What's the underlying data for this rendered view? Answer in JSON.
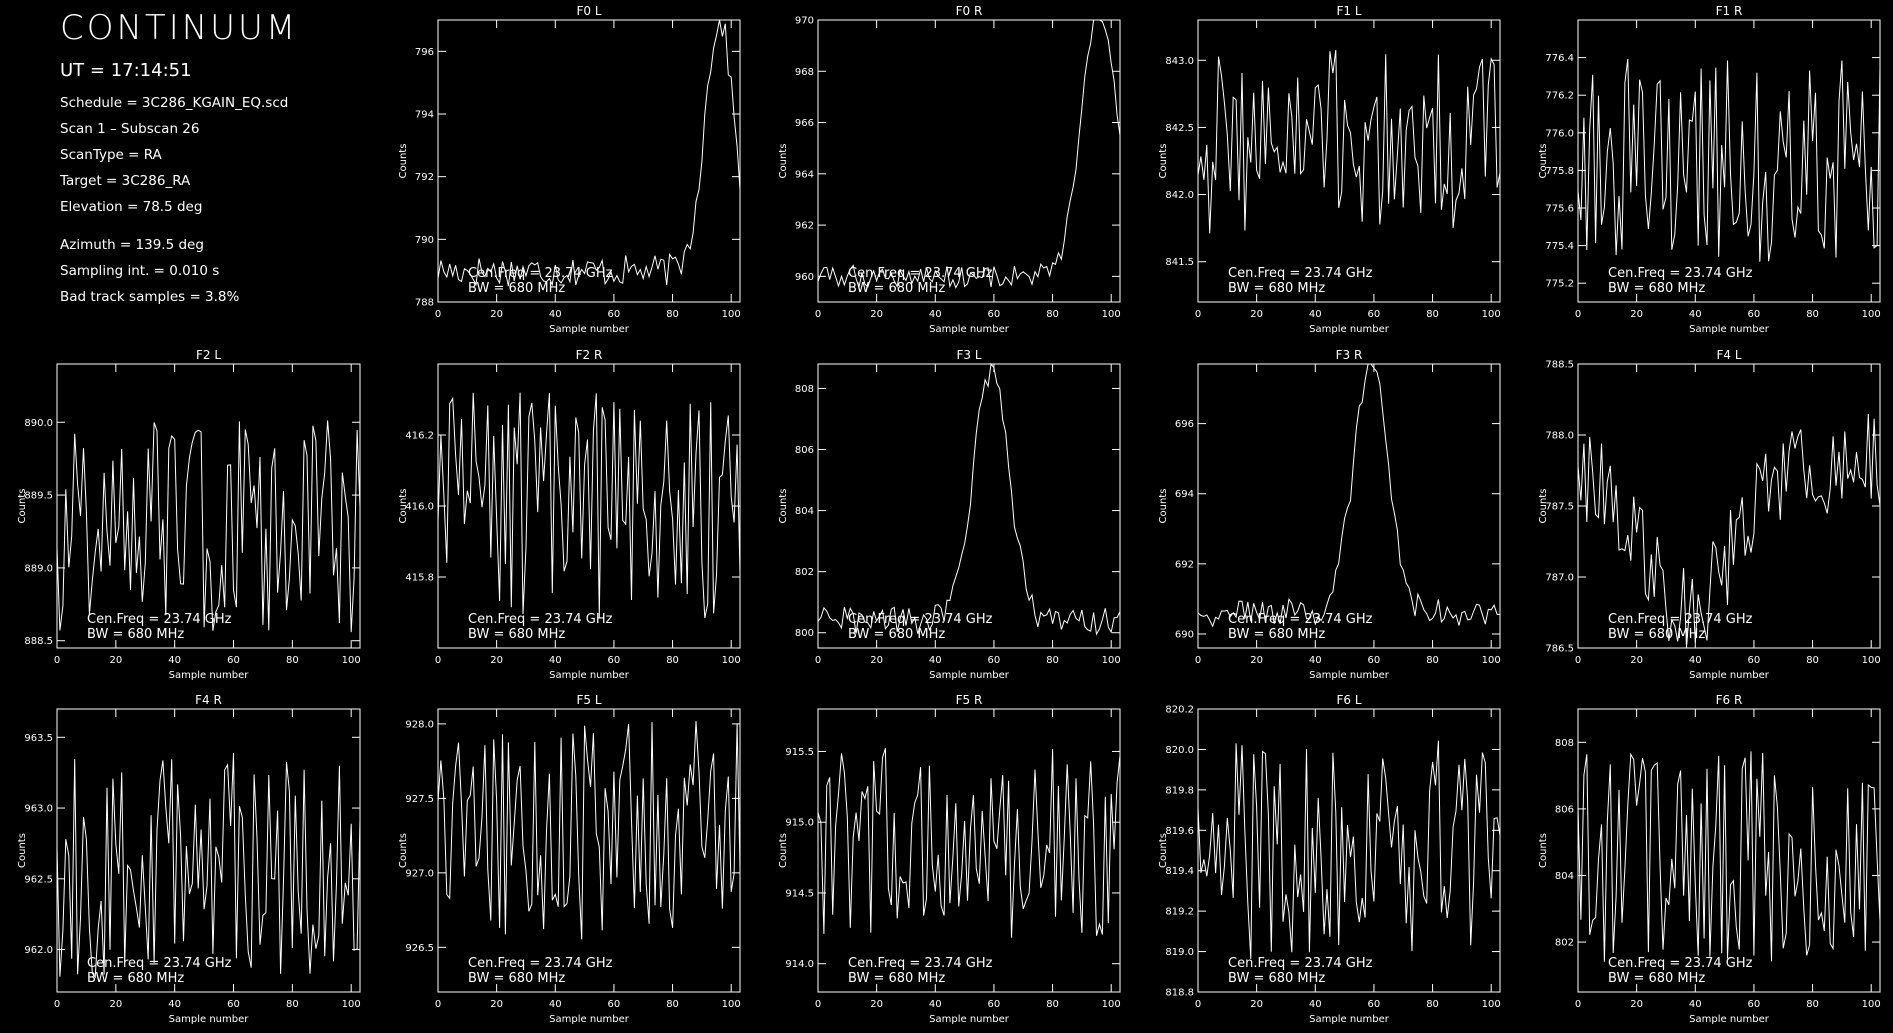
{
  "header": {
    "title": "CONTINUUM",
    "ut": "UT = 17:14:51",
    "lines_a": [
      "Schedule = 3C286_KGAIN_EQ.scd",
      "Scan 1 – Subscan 26",
      "ScanType = RA",
      "Target = 3C286_RA",
      "Elevation = 78.5 deg"
    ],
    "lines_b": [
      "Azimuth = 139.5 deg",
      "Sampling int. =  0.010 s",
      "Bad track samples =   3.8%"
    ]
  },
  "colors": {
    "background": "#000000",
    "foreground": "#ffffff"
  },
  "chart_data": [
    {
      "type": "line",
      "title": "F0 L",
      "xlabel": "Sample number",
      "ylabel": "Counts",
      "xlim": [
        0,
        103
      ],
      "ylim": [
        788,
        797
      ],
      "xticks": [
        0,
        20,
        40,
        60,
        80,
        100
      ],
      "yticks": [
        "788",
        "790",
        "792",
        "794",
        "796"
      ],
      "annotation": [
        "Cen.Freq = 23.74 GHz",
        "BW = 680 MHz"
      ],
      "signal": {
        "kind": "edge_peak",
        "base": 789,
        "amp": 8,
        "center": 96,
        "width": 5,
        "noise": 0.5
      }
    },
    {
      "type": "line",
      "title": "F0 R",
      "xlabel": "Sample number",
      "ylabel": "Counts",
      "xlim": [
        0,
        103
      ],
      "ylim": [
        959,
        970
      ],
      "xticks": [
        0,
        20,
        40,
        60,
        80,
        100
      ],
      "yticks": [
        "960",
        "962",
        "964",
        "966",
        "968",
        "970"
      ],
      "annotation": [
        "Cen.Freq = 23.74 GHz",
        "BW = 680 MHz"
      ],
      "signal": {
        "kind": "edge_peak",
        "base": 960,
        "amp": 10.5,
        "center": 96,
        "width": 6,
        "noise": 0.45
      }
    },
    {
      "type": "line",
      "title": "F1 L",
      "xlabel": "Sample number",
      "ylabel": "Counts",
      "xlim": [
        0,
        103
      ],
      "ylim": [
        841.2,
        843.3
      ],
      "xticks": [
        0,
        20,
        40,
        60,
        80,
        100
      ],
      "yticks": [
        "841.5",
        "842.0",
        "842.5",
        "843.0"
      ],
      "annotation": [
        "Cen.Freq = 23.74 GHz",
        "BW = 680 MHz"
      ],
      "signal": {
        "kind": "noise",
        "base": 842.4,
        "noise": 0.7
      }
    },
    {
      "type": "line",
      "title": "F1 R",
      "xlabel": "Sample number",
      "ylabel": "Counts",
      "xlim": [
        0,
        103
      ],
      "ylim": [
        775.1,
        776.6
      ],
      "xticks": [
        0,
        20,
        40,
        60,
        80,
        100
      ],
      "yticks": [
        "775.2",
        "775.4",
        "775.6",
        "775.8",
        "776.0",
        "776.2",
        "776.4"
      ],
      "annotation": [
        "Cen.Freq = 23.74 GHz",
        "BW = 680 MHz"
      ],
      "signal": {
        "kind": "noise",
        "base": 775.85,
        "noise": 0.55
      }
    },
    {
      "type": "line",
      "title": "F2 L",
      "xlabel": "Sample number",
      "ylabel": "Counts",
      "xlim": [
        0,
        103
      ],
      "ylim": [
        888.45,
        890.4
      ],
      "xticks": [
        0,
        20,
        40,
        60,
        80,
        100
      ],
      "yticks": [
        "888.5",
        "889.0",
        "889.5",
        "890.0"
      ],
      "annotation": [
        "Cen.Freq = 23.74 GHz",
        "BW = 680 MHz"
      ],
      "signal": {
        "kind": "noise",
        "base": 889.3,
        "noise": 0.75
      }
    },
    {
      "type": "line",
      "title": "F2 R",
      "xlabel": "Sample number",
      "ylabel": "Counts",
      "xlim": [
        0,
        103
      ],
      "ylim": [
        415.6,
        416.4
      ],
      "xticks": [
        0,
        20,
        40,
        60,
        80,
        100
      ],
      "yticks": [
        "415.8",
        "416.0",
        "416.2"
      ],
      "annotation": [
        "Cen.Freq = 23.74 GHz",
        "BW = 680 MHz"
      ],
      "signal": {
        "kind": "noise",
        "base": 416.0,
        "noise": 0.32
      }
    },
    {
      "type": "line",
      "title": "F3 L",
      "xlabel": "Sample number",
      "ylabel": "Counts",
      "xlim": [
        0,
        103
      ],
      "ylim": [
        799.5,
        808.8
      ],
      "xticks": [
        0,
        20,
        40,
        60,
        80,
        100
      ],
      "yticks": [
        "800",
        "802",
        "804",
        "806",
        "808"
      ],
      "annotation": [
        "Cen.Freq = 23.74 GHz",
        "BW = 680 MHz"
      ],
      "signal": {
        "kind": "peak",
        "base": 800.4,
        "amp": 8.2,
        "center": 59,
        "width": 6,
        "noise": 0.45
      }
    },
    {
      "type": "line",
      "title": "F3 R",
      "xlabel": "Sample number",
      "ylabel": "Counts",
      "xlim": [
        0,
        103
      ],
      "ylim": [
        689.6,
        697.7
      ],
      "xticks": [
        0,
        20,
        40,
        60,
        80,
        100
      ],
      "yticks": [
        "690",
        "692",
        "694",
        "696"
      ],
      "annotation": [
        "Cen.Freq = 23.74 GHz",
        "BW = 680 MHz"
      ],
      "signal": {
        "kind": "peak",
        "base": 690.6,
        "amp": 7.1,
        "center": 59,
        "width": 6,
        "noise": 0.4
      }
    },
    {
      "type": "line",
      "title": "F4 L",
      "xlabel": "Sample number",
      "ylabel": "Counts",
      "xlim": [
        0,
        103
      ],
      "ylim": [
        786.5,
        788.5
      ],
      "xticks": [
        0,
        20,
        40,
        60,
        80,
        100
      ],
      "yticks": [
        "786.5",
        "787.0",
        "787.5",
        "788.0",
        "788.5"
      ],
      "annotation": [
        "Cen.Freq = 23.74 GHz",
        "BW = 680 MHz"
      ],
      "signal": {
        "kind": "dip",
        "base": 787.8,
        "amp": -1.0,
        "center": 37,
        "width": 15,
        "noise": 0.35
      }
    },
    {
      "type": "line",
      "title": "F4 R",
      "xlabel": "Sample number",
      "ylabel": "Counts",
      "xlim": [
        0,
        103
      ],
      "ylim": [
        961.7,
        963.7
      ],
      "xticks": [
        0,
        20,
        40,
        60,
        80,
        100
      ],
      "yticks": [
        "962.0",
        "962.5",
        "963.0",
        "963.5"
      ],
      "annotation": [
        "Cen.Freq = 23.74 GHz",
        "BW = 680 MHz"
      ],
      "signal": {
        "kind": "noise",
        "base": 962.6,
        "noise": 0.8
      }
    },
    {
      "type": "line",
      "title": "F5 L",
      "xlabel": "Sample number",
      "ylabel": "Counts",
      "xlim": [
        0,
        103
      ],
      "ylim": [
        926.2,
        928.1
      ],
      "xticks": [
        0,
        20,
        40,
        60,
        80,
        100
      ],
      "yticks": [
        "926.5",
        "927.0",
        "927.5",
        "928.0"
      ],
      "annotation": [
        "Cen.Freq = 23.74 GHz",
        "BW = 680 MHz"
      ],
      "signal": {
        "kind": "noise",
        "base": 927.3,
        "noise": 0.75
      }
    },
    {
      "type": "line",
      "title": "F5 R",
      "xlabel": "Sample number",
      "ylabel": "Counts",
      "xlim": [
        0,
        103
      ],
      "ylim": [
        913.8,
        915.8
      ],
      "xticks": [
        0,
        20,
        40,
        60,
        80,
        100
      ],
      "yticks": [
        "914.0",
        "914.5",
        "915.0",
        "915.5"
      ],
      "annotation": [
        "Cen.Freq = 23.74 GHz",
        "BW = 680 MHz"
      ],
      "signal": {
        "kind": "noise",
        "base": 914.85,
        "noise": 0.7
      }
    },
    {
      "type": "line",
      "title": "F6 L",
      "xlabel": "Sample number",
      "ylabel": "Counts",
      "xlim": [
        0,
        103
      ],
      "ylim": [
        818.8,
        820.2
      ],
      "xticks": [
        0,
        20,
        40,
        60,
        80,
        100
      ],
      "yticks": [
        "818.8",
        "819.0",
        "819.2",
        "819.4",
        "819.6",
        "819.8",
        "820.0",
        "820.2"
      ],
      "annotation": [
        "Cen.Freq = 23.74 GHz",
        "BW = 680 MHz"
      ],
      "signal": {
        "kind": "noise",
        "base": 819.5,
        "noise": 0.55
      }
    },
    {
      "type": "line",
      "title": "F6 R",
      "xlabel": "Sample number",
      "ylabel": "Counts",
      "xlim": [
        0,
        103
      ],
      "ylim": [
        800.5,
        809
      ],
      "xticks": [
        0,
        20,
        40,
        60,
        80,
        100
      ],
      "yticks": [
        "802",
        "804",
        "806",
        "808"
      ],
      "annotation": [
        "Cen.Freq = 23.74 GHz",
        "BW = 680 MHz"
      ],
      "signal": {
        "kind": "noise",
        "base": 804.6,
        "noise": 3.2
      }
    }
  ]
}
